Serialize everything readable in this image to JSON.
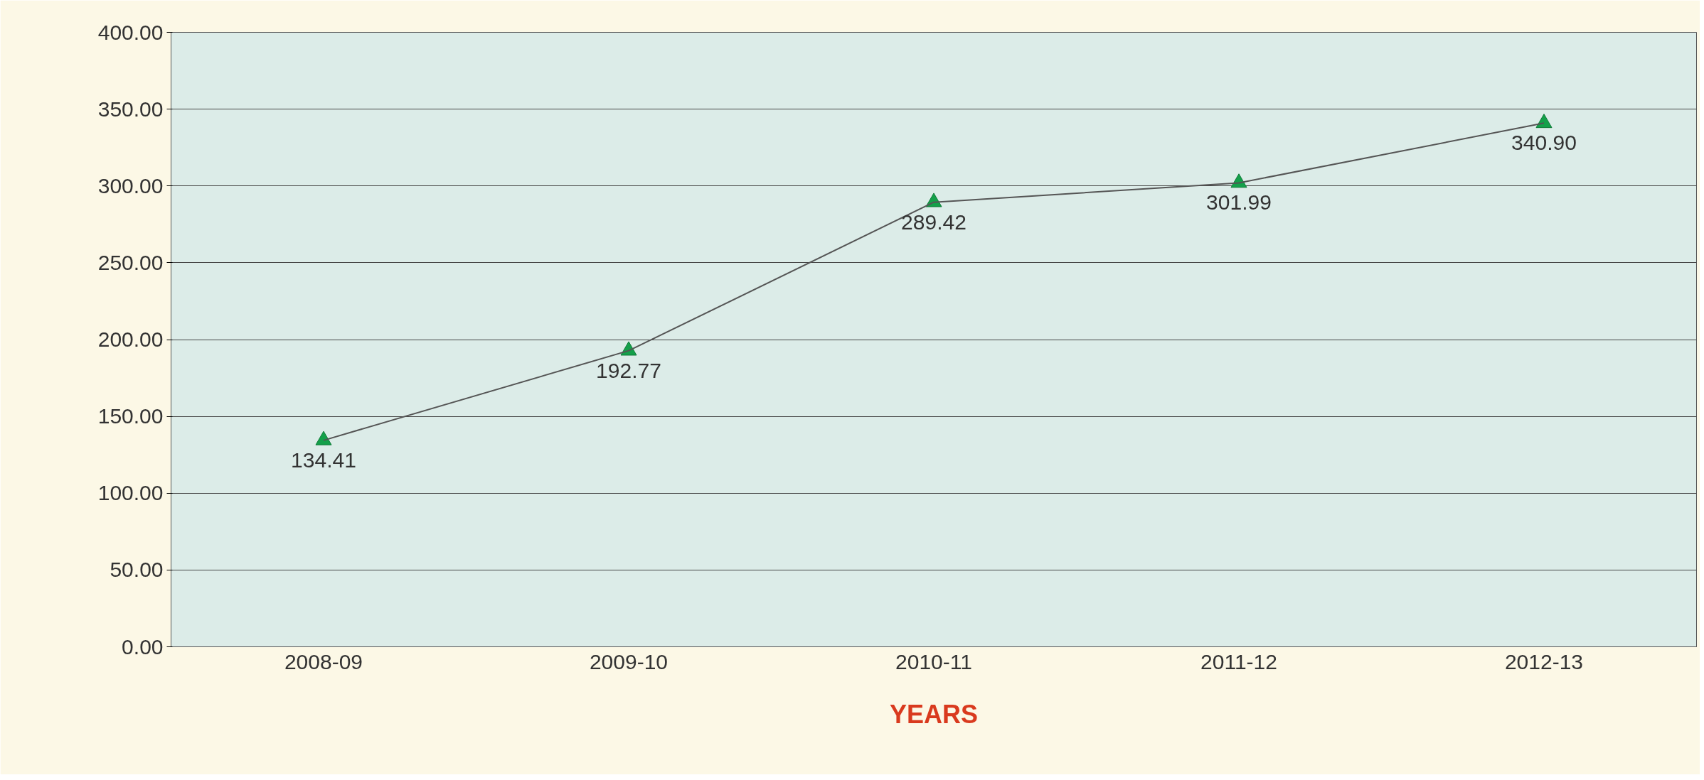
{
  "chart_data": {
    "type": "line",
    "xlabel": "YEARS",
    "categories": [
      "2008-09",
      "2009-10",
      "2010-11",
      "2011-12",
      "2012-13"
    ],
    "series": [
      {
        "color": "#555555",
        "values": [
          134.41,
          192.77,
          289.42,
          301.99,
          340.9
        ],
        "value_labels": [
          "134.41",
          "192.77",
          "289.42",
          "301.99",
          "340.90"
        ]
      }
    ],
    "ylim": [
      0,
      400
    ],
    "yticks": [
      {
        "value": 0,
        "label": "0.00"
      },
      {
        "value": 50,
        "label": "50.00"
      },
      {
        "value": 100,
        "label": "100.00"
      },
      {
        "value": 150,
        "label": "150.00"
      },
      {
        "value": 200,
        "label": "200.00"
      },
      {
        "value": 250,
        "label": "250.00"
      },
      {
        "value": 300,
        "label": "300.00"
      },
      {
        "value": 350,
        "label": "350.00"
      },
      {
        "value": 400,
        "label": "400.00"
      }
    ],
    "grid": "y",
    "marker": "triangle",
    "line_style": "solid"
  }
}
